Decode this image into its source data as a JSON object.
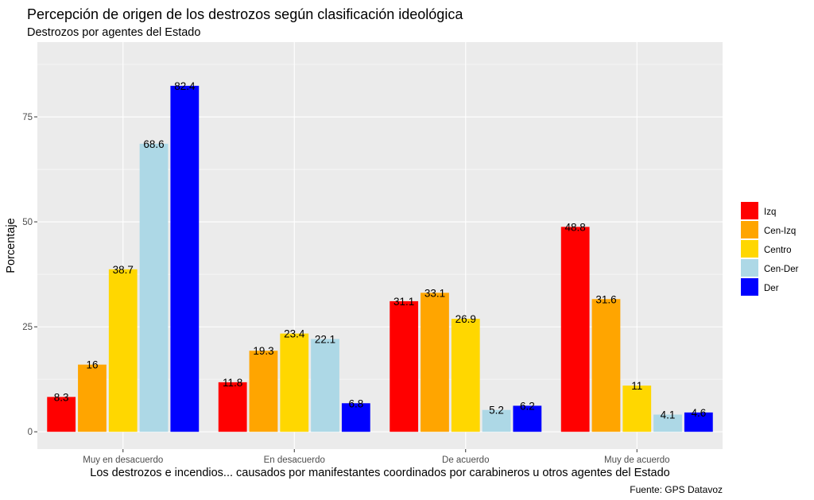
{
  "chart_data": {
    "type": "bar",
    "title": "Percepción de origen de los destrozos según clasificación ideológica",
    "subtitle": "Destrozos por agentes del Estado",
    "xlabel": "Los destrozos e incendios... causados por manifestantes coordinados por carabineros u otros agentes del Estado",
    "ylabel": "Porcentaje",
    "caption": "Fuente: GPS Datavoz",
    "categories": [
      "Muy en desacuerdo",
      "En desacuerdo",
      "De acuerdo",
      "Muy de acuerdo"
    ],
    "y_ticks": [
      0,
      25,
      50,
      75
    ],
    "ylim": [
      -4.13,
      92.8
    ],
    "grid": true,
    "legend_position": "right",
    "series": [
      {
        "name": "Izq",
        "color": "#ff0000",
        "values": [
          8.3,
          11.8,
          31.1,
          48.8
        ],
        "labels": [
          "8.3",
          "11.8",
          "31.1",
          "48.8"
        ]
      },
      {
        "name": "Cen-Izq",
        "color": "#ffa500",
        "values": [
          16,
          19.3,
          33.1,
          31.6
        ],
        "labels": [
          "16",
          "19.3",
          "33.1",
          "31.6"
        ]
      },
      {
        "name": "Centro",
        "color": "#ffd700",
        "values": [
          38.7,
          23.4,
          26.9,
          11
        ],
        "labels": [
          "38.7",
          "23.4",
          "26.9",
          "11"
        ]
      },
      {
        "name": "Cen-Der",
        "color": "#add8e6",
        "values": [
          68.6,
          22.1,
          5.2,
          4.1
        ],
        "labels": [
          "68.6",
          "22.1",
          "5.2",
          "4.1"
        ]
      },
      {
        "name": "Der",
        "color": "#0000ff",
        "values": [
          82.4,
          6.8,
          6.2,
          4.6
        ],
        "labels": [
          "82.4",
          "6.8",
          "6.2",
          "4.6"
        ]
      }
    ],
    "panel_background": "#ebebeb",
    "grid_color": "#ffffff"
  }
}
